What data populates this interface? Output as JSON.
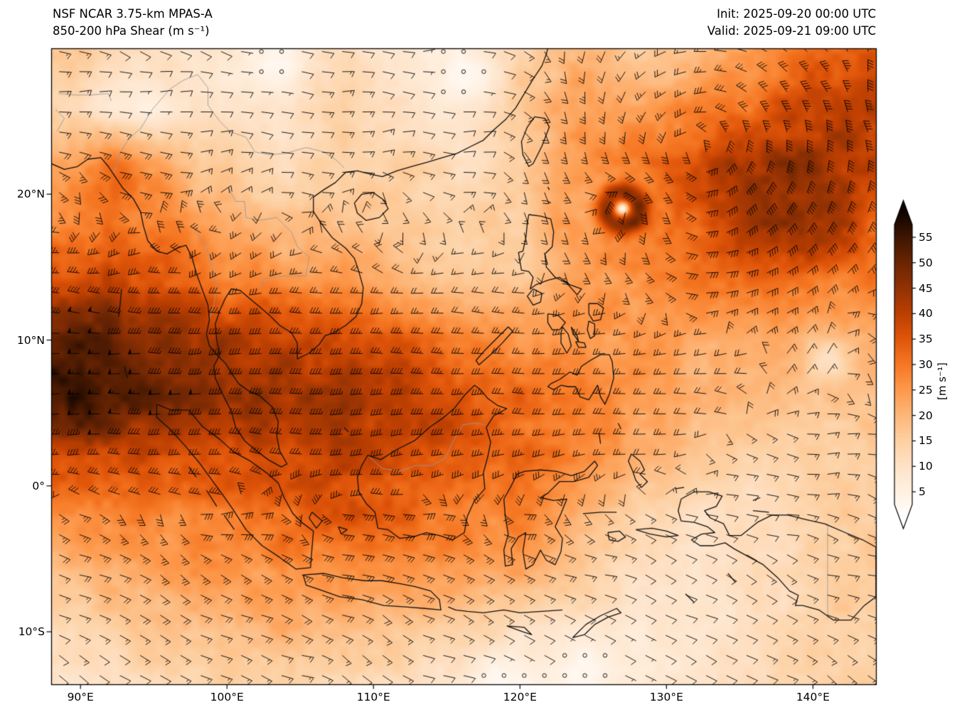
{
  "header": {
    "title_line1": "NSF NCAR 3.75-km MPAS-A",
    "title_line2": "850-200 hPa Shear (m s⁻¹)",
    "init_label": "Init: 2025-09-20 00:00 UTC",
    "valid_label": "Valid: 2025-09-21 09:00 UTC"
  },
  "axes": {
    "lon_ticks": [
      {
        "value": 90,
        "label": "90°E"
      },
      {
        "value": 100,
        "label": "100°E"
      },
      {
        "value": 110,
        "label": "110°E"
      },
      {
        "value": 120,
        "label": "120°E"
      },
      {
        "value": 130,
        "label": "130°E"
      },
      {
        "value": 140,
        "label": "140°E"
      }
    ],
    "lat_ticks": [
      {
        "value": 20,
        "label": "20°N"
      },
      {
        "value": 10,
        "label": "10°N"
      },
      {
        "value": 0,
        "label": "0°"
      },
      {
        "value": -10,
        "label": "10°S"
      }
    ],
    "lon_range": [
      88.0,
      144.3
    ],
    "lat_range": [
      -13.6,
      30.0
    ]
  },
  "colorbar": {
    "ticks": [
      5,
      10,
      15,
      20,
      25,
      30,
      35,
      40,
      45,
      50,
      55
    ],
    "unit_label": "[m s⁻¹]",
    "extend": "both",
    "stops": [
      {
        "v": 0,
        "c": "#ffffff"
      },
      {
        "v": 5,
        "c": "#fff1e2"
      },
      {
        "v": 10,
        "c": "#fee3c8"
      },
      {
        "v": 15,
        "c": "#fdd0a2"
      },
      {
        "v": 20,
        "c": "#fdb77a"
      },
      {
        "v": 25,
        "c": "#fd9a4d"
      },
      {
        "v": 30,
        "c": "#f67824"
      },
      {
        "v": 35,
        "c": "#e1560a"
      },
      {
        "v": 40,
        "c": "#bc3f02"
      },
      {
        "v": 45,
        "c": "#933203"
      },
      {
        "v": 50,
        "c": "#6b2503"
      },
      {
        "v": 55,
        "c": "#3f1601"
      },
      {
        "v": 60,
        "c": "#0d0400"
      }
    ]
  },
  "chart_data": {
    "type": "heatmap",
    "title": "850-200 hPa Shear",
    "units": "m s⁻¹",
    "model": "NSF NCAR 3.75-km MPAS-A",
    "init_time": "2025-09-20 00:00 UTC",
    "valid_time": "2025-09-21 09:00 UTC",
    "overlay": "wind shear barbs, calm circles in low-shear regions",
    "lon_range": [
      88.0,
      144.3
    ],
    "lat_range": [
      -13.6,
      30.0
    ],
    "colorbar_range": [
      5,
      55
    ],
    "grid": {
      "lons": [
        88,
        92,
        96,
        100,
        104,
        108,
        112,
        116,
        120,
        124,
        128,
        132,
        136,
        140,
        144
      ],
      "lats": [
        30,
        26,
        22,
        18,
        14,
        10,
        6,
        2,
        -2,
        -6,
        -10,
        -14
      ],
      "values": [
        [
          18,
          14,
          10,
          8,
          6,
          12,
          8,
          6,
          14,
          20,
          15,
          18,
          25,
          30,
          33
        ],
        [
          14,
          8,
          10,
          8,
          10,
          15,
          10,
          8,
          16,
          24,
          22,
          28,
          32,
          38,
          40
        ],
        [
          22,
          24,
          20,
          15,
          12,
          15,
          14,
          12,
          14,
          26,
          30,
          36,
          44,
          46,
          38
        ],
        [
          26,
          30,
          28,
          22,
          18,
          18,
          16,
          14,
          16,
          28,
          35,
          34,
          44,
          46,
          34
        ],
        [
          35,
          40,
          36,
          30,
          27,
          24,
          20,
          16,
          18,
          24,
          27,
          28,
          32,
          30,
          28
        ],
        [
          52,
          50,
          46,
          42,
          40,
          38,
          34,
          28,
          26,
          26,
          25,
          22,
          22,
          20,
          20
        ],
        [
          57,
          55,
          50,
          46,
          43,
          42,
          40,
          36,
          32,
          30,
          25,
          20,
          18,
          17,
          18
        ],
        [
          40,
          38,
          36,
          36,
          38,
          40,
          38,
          35,
          32,
          28,
          22,
          16,
          14,
          14,
          16
        ],
        [
          26,
          28,
          28,
          30,
          32,
          34,
          32,
          30,
          28,
          22,
          14,
          11,
          11,
          13,
          16
        ],
        [
          18,
          22,
          24,
          25,
          27,
          27,
          25,
          24,
          22,
          17,
          11,
          9,
          11,
          14,
          16
        ],
        [
          12,
          14,
          17,
          18,
          20,
          18,
          17,
          14,
          10,
          8,
          8,
          9,
          11,
          14,
          15
        ],
        [
          8,
          10,
          12,
          14,
          14,
          12,
          10,
          7,
          5,
          5,
          7,
          9,
          11,
          13,
          14
        ]
      ]
    },
    "features": {
      "tropical_cyclone": {
        "lon": 127.0,
        "lat": 19.0,
        "eye_min_shear": 4,
        "ring_max_shear": 44
      },
      "max_shear_band": {
        "description": "dark band of >50 m/s shear",
        "lat_center": 7.5,
        "lon_extent": [
          88,
          112
        ]
      },
      "low_shear_spots": [
        {
          "lon": 141.2,
          "lat": 8.6,
          "sig": 1.4,
          "amp": 9
        },
        {
          "lon": 116.8,
          "lat": 27.8,
          "sig": 1.9,
          "amp": 5
        },
        {
          "lon": 103.6,
          "lat": 28.6,
          "sig": 1.7,
          "amp": 5
        },
        {
          "lon": 94.6,
          "lat": 25.6,
          "sig": 1.8,
          "amp": 5
        },
        {
          "lon": 124.6,
          "lat": -12.6,
          "sig": 1.8,
          "amp": 4
        },
        {
          "lon": 118.6,
          "lat": -12.8,
          "sig": 1.6,
          "amp": 4
        },
        {
          "lon": 121.5,
          "lat": 15.5,
          "sig": 1.5,
          "amp": 4
        }
      ],
      "high_shear_spots": [
        {
          "lon": 93.0,
          "lat": 21.3,
          "sig": 2.2,
          "amp": 6
        }
      ]
    }
  }
}
